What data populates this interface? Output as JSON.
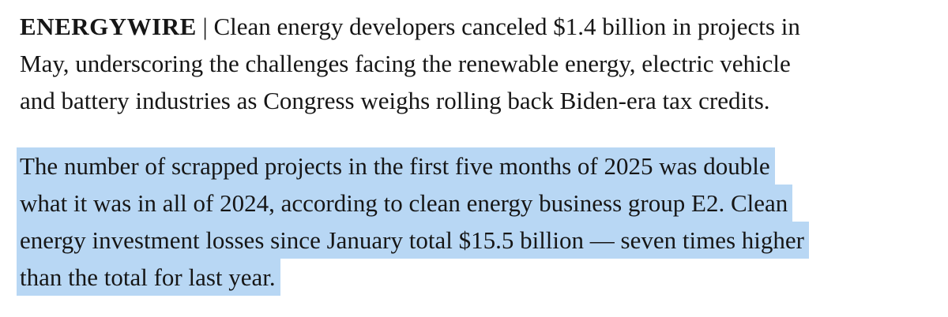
{
  "page": {
    "background_color": "#ffffff",
    "text_color": "#161616"
  },
  "article": {
    "lead": {
      "brand": "ENERGYWIRE",
      "separator": " | ",
      "lines": [
        "Clean energy developers canceled $1.4 billion in projects in",
        "May, underscoring the challenges facing the renewable energy, electric vehicle",
        "and battery industries as Congress weighs rolling back Biden-era tax credits."
      ]
    },
    "highlighted": {
      "highlight_color": "#b8d7f4",
      "lines": [
        "The number of scrapped projects in the first five months of 2025 was double",
        "what it was in all of 2024, according to clean energy business group E2. Clean",
        "energy investment losses since January total $15.5 billion — seven times higher",
        "than the total for last year."
      ]
    }
  }
}
